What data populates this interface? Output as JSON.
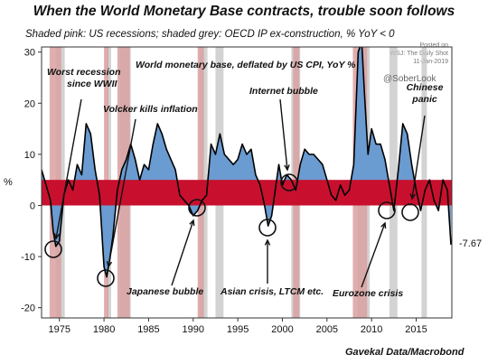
{
  "header": {
    "title": "When the World Monetary Base contracts, trouble soon follows",
    "subtitle": "Shaded pink: US recessions; shaded grey: OECD IP ex-construction, % YoY < 0",
    "wsj_line1": "Posted on",
    "wsj_line2": "WSJ: The Daily Shot",
    "wsj_line3": "11-Jan-2019",
    "handle": "@SoberLook",
    "source": "Gavekal Data/Macrobond"
  },
  "colors": {
    "series_fill": "#6a9bd1",
    "series_line": "#000000",
    "red_band": "#c8102e",
    "recession": "#d9a0a0",
    "oecd": "#c4c4c4"
  },
  "chart_data": {
    "type": "area",
    "series_name": "World monetary base, deflated by US CPI, YoY %",
    "ylabel": "%",
    "ylim": [
      -22,
      31
    ],
    "xlim": [
      1973,
      2019
    ],
    "yticks": [
      -20,
      -10,
      0,
      10,
      20,
      30
    ],
    "xticks": [
      1975,
      1980,
      1985,
      1990,
      1995,
      2000,
      2005,
      2010,
      2015
    ],
    "red_band": [
      0,
      5
    ],
    "last_value_label": "-7.67",
    "recessions": [
      [
        1973.9,
        1975.2
      ],
      [
        1980.0,
        1980.5
      ],
      [
        1981.5,
        1982.9
      ],
      [
        1990.5,
        1991.2
      ],
      [
        2001.2,
        2001.9
      ],
      [
        2007.9,
        2009.5
      ]
    ],
    "oecd_negative": [
      [
        1974.6,
        1975.6
      ],
      [
        1980.3,
        1980.8
      ],
      [
        1981.8,
        1983.0
      ],
      [
        1990.7,
        1991.6
      ],
      [
        1992.5,
        1993.4
      ],
      [
        2001.0,
        2002.0
      ],
      [
        2008.4,
        2009.8
      ],
      [
        2012.0,
        2012.9
      ],
      [
        2015.6,
        2016.2
      ]
    ],
    "x": [
      1973.0,
      1973.5,
      1974.0,
      1974.3,
      1974.6,
      1975.0,
      1975.5,
      1976.0,
      1976.5,
      1977.0,
      1977.5,
      1978.0,
      1978.5,
      1979.0,
      1979.5,
      1980.0,
      1980.3,
      1980.6,
      1981.0,
      1981.5,
      1982.0,
      1982.5,
      1983.0,
      1983.5,
      1984.0,
      1984.5,
      1985.0,
      1985.5,
      1986.0,
      1986.5,
      1987.0,
      1987.5,
      1988.0,
      1988.5,
      1989.0,
      1989.5,
      1990.0,
      1990.5,
      1991.0,
      1991.5,
      1992.0,
      1992.5,
      1993.0,
      1993.5,
      1994.0,
      1994.5,
      1995.0,
      1995.5,
      1996.0,
      1996.5,
      1997.0,
      1997.5,
      1998.0,
      1998.4,
      1998.8,
      1999.2,
      1999.6,
      2000.0,
      2000.5,
      2001.0,
      2001.5,
      2002.0,
      2002.5,
      2003.0,
      2003.5,
      2004.0,
      2004.5,
      2005.0,
      2005.5,
      2006.0,
      2006.5,
      2007.0,
      2007.5,
      2008.0,
      2008.5,
      2008.9,
      2009.2,
      2009.6,
      2010.0,
      2010.5,
      2011.0,
      2011.5,
      2012.0,
      2012.5,
      2013.0,
      2013.5,
      2014.0,
      2014.5,
      2015.0,
      2015.5,
      2016.0,
      2016.5,
      2017.0,
      2017.5,
      2018.0,
      2018.5,
      2018.9
    ],
    "y": [
      7,
      4,
      1,
      -5,
      -8,
      -7,
      2,
      5,
      3,
      8,
      6,
      16,
      14,
      7,
      2,
      -12,
      -14,
      -11,
      -6,
      3,
      7,
      9,
      12,
      9,
      5,
      8,
      7,
      12,
      16,
      14,
      11,
      9,
      7,
      2,
      1,
      0,
      -2,
      -1,
      1,
      2,
      12,
      10,
      14,
      10,
      9,
      8,
      9,
      12,
      10,
      11,
      6,
      4,
      0,
      -4,
      -2,
      3,
      8,
      4,
      6,
      5,
      3,
      8,
      11,
      10,
      10,
      9,
      8,
      5,
      2,
      1,
      4,
      2,
      3,
      8,
      30,
      32,
      22,
      10,
      15,
      12,
      12,
      9,
      4,
      -1,
      7,
      16,
      14,
      8,
      3,
      -1,
      3,
      5,
      1,
      -1,
      5,
      3,
      -7.67
    ],
    "annotations": [
      {
        "lines": [
          "Worst recession",
          "since WWII"
        ],
        "x": 1974.5,
        "y": -9
      },
      {
        "lines": [
          "Volcker kills inflation"
        ],
        "x": 1980.3,
        "y": -14.5
      },
      {
        "lines": [
          "Japanese bubble"
        ],
        "x": 1990.8,
        "y": -0.5
      },
      {
        "lines": [
          "Asian crisis, LTCM etc."
        ],
        "x": 1998.4,
        "y": -4
      },
      {
        "lines": [
          "Internet bubble"
        ],
        "x": 2001.4,
        "y": 5
      },
      {
        "lines": [
          "Eurozone crisis"
        ],
        "x": 2012.6,
        "y": -0.5
      },
      {
        "lines": [
          "Chinese",
          "panic"
        ],
        "x": 2015.0,
        "y": -1
      }
    ]
  }
}
